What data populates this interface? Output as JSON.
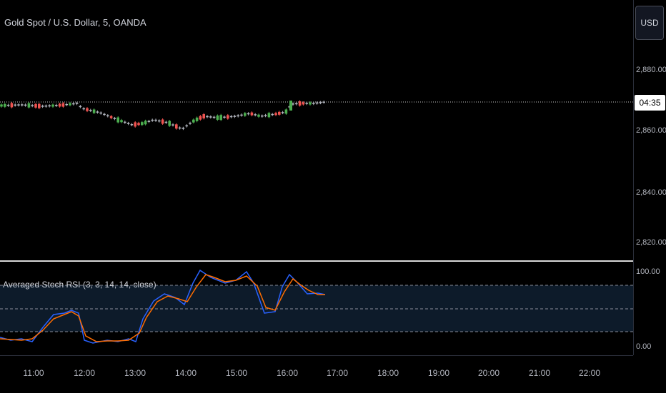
{
  "symbol": {
    "title": "Gold Spot / U.S. Dollar, 5, OANDA"
  },
  "currency_button": "USD",
  "price_axis": {
    "labels": [
      "2,880.000",
      "2,860.000",
      "2,840.000",
      "2,820.000"
    ],
    "countdown": "04:35"
  },
  "oscillator": {
    "title": "Averaged Stoch RSI (3, 3, 14, 14, close)",
    "labels": [
      "100.00",
      "0.00"
    ]
  },
  "time_axis": {
    "labels": [
      "11:00",
      "12:00",
      "13:00",
      "14:00",
      "15:00",
      "16:00",
      "17:00",
      "18:00",
      "19:00",
      "20:00",
      "21:00",
      "22:00"
    ]
  },
  "colors": {
    "up": "#4caf50",
    "down": "#ef5350",
    "neutral": "#b2b5be",
    "k_line": "#2962ff",
    "d_line": "#ff6d00",
    "band": "#0d1b2a"
  }
}
